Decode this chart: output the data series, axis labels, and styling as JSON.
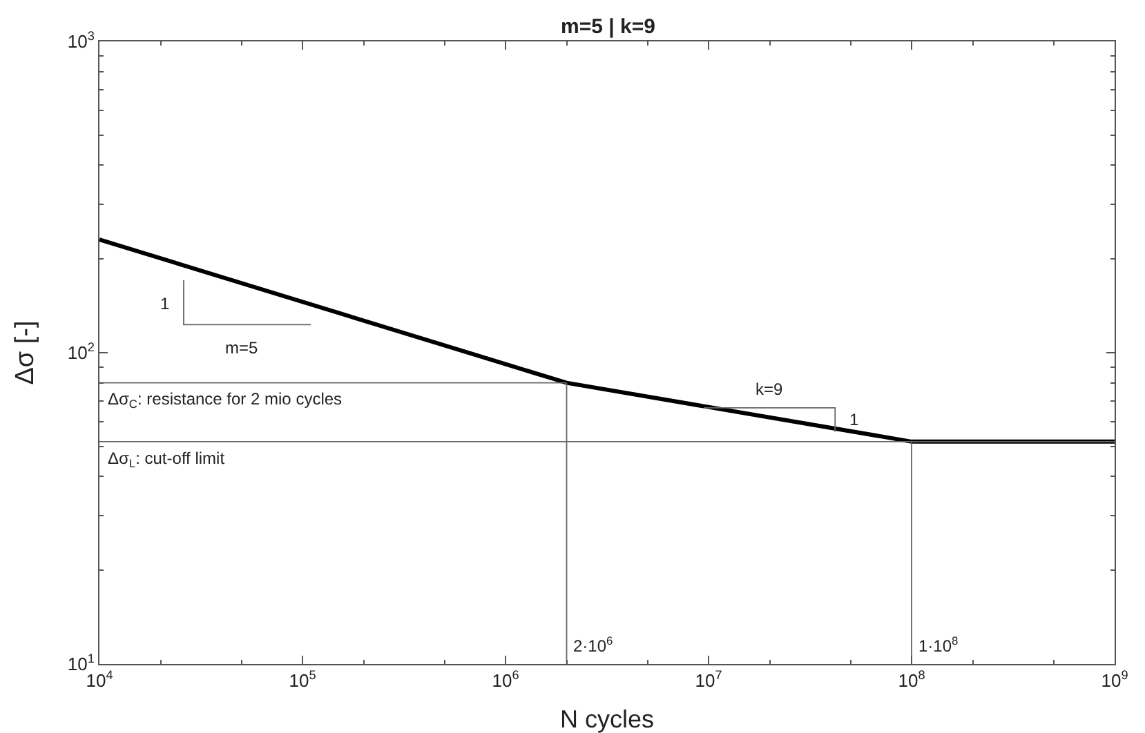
{
  "chart_data": {
    "type": "line",
    "title": "m=5 | k=9",
    "xlabel": "N cycles",
    "ylabel": "Δσ [-]",
    "log": "xy",
    "grid": false,
    "line_style": "solid",
    "marker": "none",
    "xlim": [
      10000,
      1000000000
    ],
    "ylim": [
      10,
      1000
    ],
    "xticks": [
      {
        "value": 10000,
        "label": "10$^{4}$"
      },
      {
        "value": 100000,
        "label": "10$^{5}$"
      },
      {
        "value": 1000000,
        "label": "10$^{6}$"
      },
      {
        "value": 10000000,
        "label": "10$^{7}$"
      },
      {
        "value": 100000000,
        "label": "10$^{8}$"
      },
      {
        "value": 1000000000,
        "label": "10$^{9}$"
      }
    ],
    "yticks": [
      {
        "value": 10,
        "label": "10$^{1}$"
      },
      {
        "value": 100,
        "label": "10$^{2}$"
      },
      {
        "value": 1000,
        "label": "10$^{3}$"
      }
    ],
    "series": [
      {
        "color": "#000000",
        "x": [
          10000,
          2000000,
          100000000,
          1000000000
        ],
        "values": [
          231,
          80,
          51.8,
          51.8
        ]
      },
      {
        "color": "#666666",
        "x": [
          10000,
          2000000
        ],
        "values": [
          80,
          80
        ]
      },
      {
        "color": "#666666",
        "x": [
          10000,
          1000000000
        ],
        "values": [
          51.8,
          51.8
        ]
      },
      {
        "color": "#666666",
        "x": [
          2000000,
          2000000
        ],
        "values": [
          10,
          80
        ]
      },
      {
        "color": "#666666",
        "x": [
          100000000,
          100000000
        ],
        "values": [
          10,
          51.8
        ]
      },
      {
        "color": "#666666",
        "x": [
          26000,
          26000,
          110000
        ],
        "values": [
          171,
          123,
          123
        ]
      },
      {
        "color": "#666666",
        "x": [
          9500000,
          42000000,
          42000000
        ],
        "values": [
          66.5,
          66.5,
          55.7
        ]
      }
    ],
    "annotations": [
      {
        "text": "Δσ$_{C}$: resistance for 2 mio cycles",
        "x": 10000,
        "y": 80
      },
      {
        "text": "Δσ$_{L}$: cut-off limit",
        "x": 10000,
        "y": 51.8
      },
      {
        "text": "2·10$^{6}$",
        "x": 2100000,
        "y": 11.5
      },
      {
        "text": "1·10$^{8}$",
        "x": 105000000,
        "y": 11.5
      },
      {
        "text": "1",
        "x": 26000,
        "y": 143
      },
      {
        "text": "m=5",
        "x": 50000,
        "y": 123
      },
      {
        "text": "k=9",
        "x": 20000000,
        "y": 66.5
      },
      {
        "text": "1",
        "x": 42000000,
        "y": 61
      }
    ]
  }
}
